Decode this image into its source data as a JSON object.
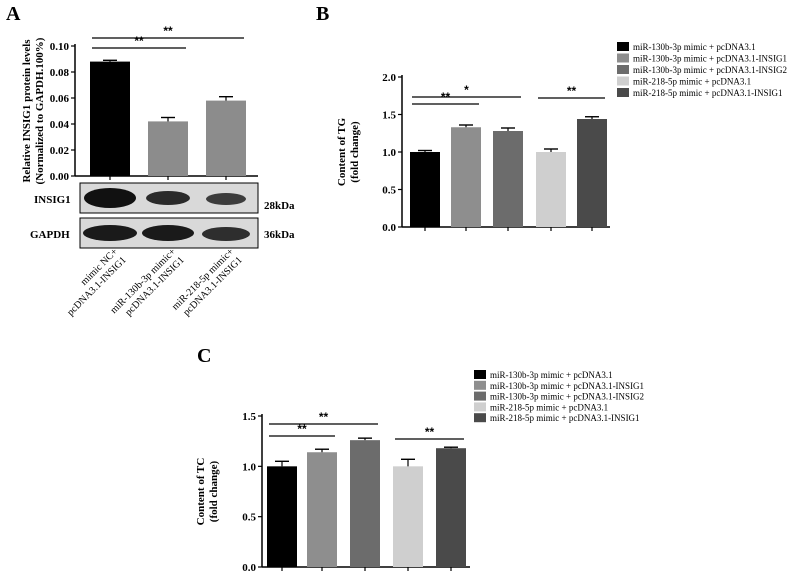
{
  "chart_data": [
    {
      "panel": "A",
      "type": "bar",
      "ylabel": [
        "Relative INSIG1 protein levels",
        "(Normalized to GAPDH.100%)"
      ],
      "ylim": [
        0,
        0.1
      ],
      "yticks": [
        "0.00",
        "0.02",
        "0.04",
        "0.06",
        "0.08",
        "0.10"
      ],
      "categories": [
        [
          "mimic NC+",
          "pcDNA3.1-INSIG1"
        ],
        [
          "miR-130b-3p mimic+",
          "pcDNA3.1-INSIG1"
        ],
        [
          "miR-218-5p mimic+",
          "pcDNA3.1-INSIG1"
        ]
      ],
      "values": [
        0.088,
        0.042,
        0.058
      ],
      "errors": [
        0.001,
        0.003,
        0.003
      ],
      "colors": [
        "#000000",
        "#8c8c8c",
        "#8c8c8c"
      ],
      "significance": [
        {
          "from": 0,
          "to": 1,
          "label": "**"
        },
        {
          "from": 0,
          "to": 2,
          "label": "**"
        }
      ],
      "blot": {
        "rows": [
          {
            "label": "INSIG1",
            "size": "28kDa"
          },
          {
            "label": "GAPDH",
            "size": "36kDa"
          }
        ]
      }
    },
    {
      "panel": "B",
      "type": "bar",
      "ylabel": [
        "Content of TG",
        "(fold change)"
      ],
      "ylim": [
        0,
        2.0
      ],
      "yticks": [
        "0.0",
        "0.5",
        "1.0",
        "1.5",
        "2.0"
      ],
      "values": [
        1.0,
        1.33,
        1.28,
        1.0,
        1.44
      ],
      "errors": [
        0.02,
        0.03,
        0.04,
        0.04,
        0.03
      ],
      "colors": [
        "#000000",
        "#8e8e8e",
        "#6c6c6c",
        "#cfcfcf",
        "#4a4a4a"
      ],
      "legend": [
        "miR-130b-3p mimic + pcDNA3.1",
        "miR-130b-3p mimic + pcDNA3.1-INSIG1",
        "miR-130b-3p mimic + pcDNA3.1-INSIG2",
        "miR-218-5p mimic + pcDNA3.1",
        "miR-218-5p mimic + pcDNA3.1-INSIG1"
      ],
      "significance": [
        {
          "from": 0,
          "to": 1,
          "label": "**"
        },
        {
          "from": 0,
          "to": 2,
          "label": "*"
        },
        {
          "from": 3,
          "to": 4,
          "label": "**"
        }
      ]
    },
    {
      "panel": "C",
      "type": "bar",
      "ylabel": [
        "Content of TC",
        "(fold change)"
      ],
      "ylim": [
        0,
        1.5
      ],
      "yticks": [
        "0.0",
        "0.5",
        "1.0",
        "1.5"
      ],
      "values": [
        1.0,
        1.14,
        1.26,
        1.0,
        1.18
      ],
      "errors": [
        0.05,
        0.03,
        0.02,
        0.07,
        0.01
      ],
      "colors": [
        "#000000",
        "#8e8e8e",
        "#6c6c6c",
        "#cfcfcf",
        "#4a4a4a"
      ],
      "legend": [
        "miR-130b-3p mimic + pcDNA3.1",
        "miR-130b-3p mimic + pcDNA3.1-INSIG1",
        "miR-130b-3p mimic + pcDNA3.1-INSIG2",
        "miR-218-5p mimic + pcDNA3.1",
        "miR-218-5p mimic + pcDNA3.1-INSIG1"
      ],
      "significance": [
        {
          "from": 0,
          "to": 1,
          "label": "**"
        },
        {
          "from": 0,
          "to": 2,
          "label": "**"
        },
        {
          "from": 3,
          "to": 4,
          "label": "**"
        }
      ]
    }
  ]
}
